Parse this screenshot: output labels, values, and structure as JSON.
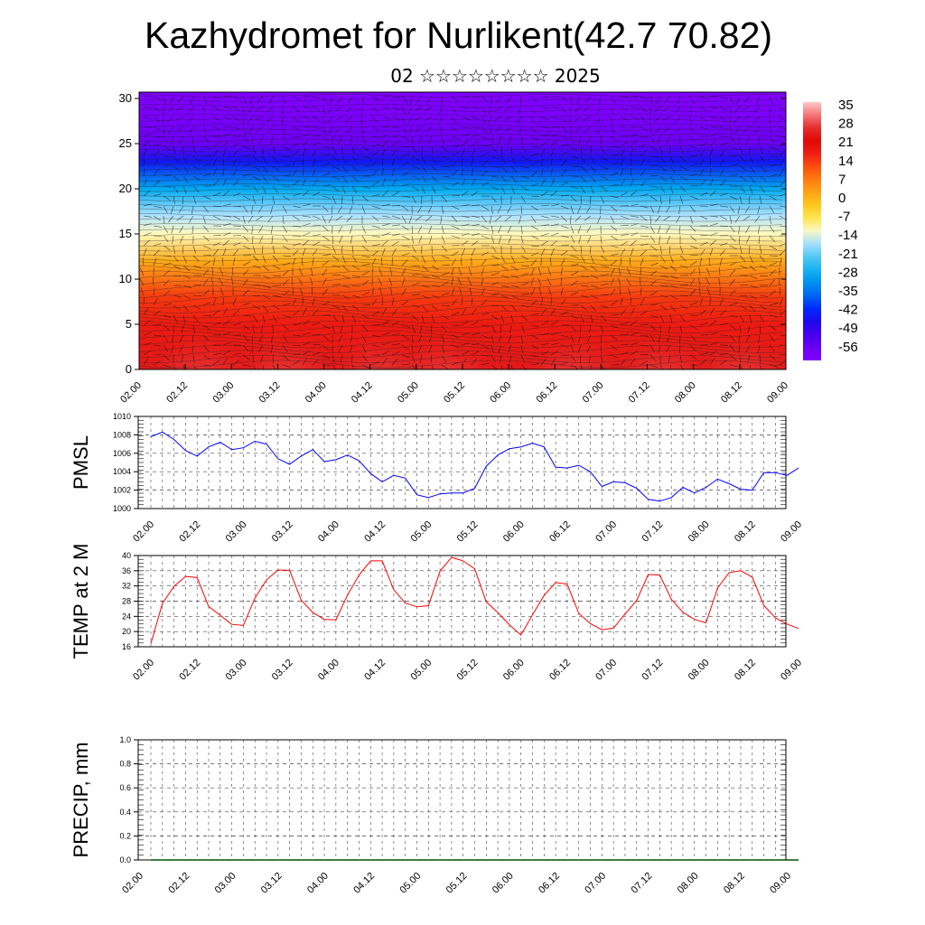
{
  "page": {
    "title": "Kazhydromet for Nurlikent(42.7 70.82)",
    "subtitle": "02 ☆☆☆☆☆☆☆☆ 2025"
  },
  "time_labels": [
    "02.00",
    "02.12",
    "03.00",
    "03.12",
    "04.00",
    "04.12",
    "05.00",
    "05.12",
    "06.00",
    "06.12",
    "07.00",
    "07.12",
    "08.00",
    "08.12",
    "09.00"
  ],
  "chart_data": [
    {
      "type": "heatmap",
      "description_label": "",
      "x": [
        "02.00",
        "02.12",
        "03.00",
        "03.12",
        "04.00",
        "04.12",
        "05.00",
        "05.12",
        "06.00",
        "06.12",
        "07.00",
        "07.12",
        "08.00",
        "08.12",
        "09.00"
      ],
      "y_ticks": [
        0,
        5,
        10,
        15,
        20,
        25,
        30
      ],
      "ylim": [
        0,
        30.7
      ],
      "colorbar_ticks": [
        "35",
        "28",
        "21",
        "14",
        "7",
        "0",
        "-7",
        "-14",
        "-21",
        "-28",
        "-35",
        "-42",
        "-49",
        "-56"
      ],
      "colorbar_range": [
        -63,
        42
      ],
      "temperature_profile": [
        {
          "height": 0,
          "temp": 30
        },
        {
          "height": 5,
          "temp": 22
        },
        {
          "height": 8,
          "temp": 18
        },
        {
          "height": 12,
          "temp": 4
        },
        {
          "height": 15,
          "temp": -10
        },
        {
          "height": 17,
          "temp": -15
        },
        {
          "height": 20,
          "temp": -28
        },
        {
          "height": 23,
          "temp": -45
        },
        {
          "height": 25,
          "temp": -58
        },
        {
          "height": 28,
          "temp": -62
        },
        {
          "height": 30.7,
          "temp": -63
        }
      ],
      "wind_barbs": true
    },
    {
      "type": "line",
      "ylabel": "PMSL",
      "ylim": [
        1000,
        1010
      ],
      "y_ticks": [
        1000,
        1002,
        1004,
        1006,
        1008,
        1010
      ],
      "color": "#0000ff",
      "x_step_hours": 3,
      "values": [
        1007.8,
        1008.3,
        1007.5,
        1006.3,
        1005.7,
        1006.7,
        1007.2,
        1006.4,
        1006.6,
        1007.3,
        1007.0,
        1005.4,
        1004.8,
        1005.7,
        1006.4,
        1005.1,
        1005.3,
        1005.8,
        1005.2,
        1003.8,
        1002.9,
        1003.6,
        1003.3,
        1001.5,
        1001.2,
        1001.6,
        1001.7,
        1001.7,
        1002.2,
        1004.6,
        1005.8,
        1006.5,
        1006.7,
        1007.1,
        1006.7,
        1004.5,
        1004.4,
        1004.7,
        1004.0,
        1002.4,
        1002.9,
        1002.8,
        1002.2,
        1001.0,
        1000.8,
        1001.2,
        1002.3,
        1001.7,
        1002.3,
        1003.2,
        1002.7,
        1002.1,
        1002.0,
        1003.9,
        1003.9,
        1003.6,
        1004.4
      ]
    },
    {
      "type": "line",
      "ylabel": "TEMP at 2 M",
      "ylim": [
        16,
        40
      ],
      "y_ticks": [
        16,
        20,
        24,
        28,
        32,
        36,
        40
      ],
      "color": "#ff0000",
      "x_step_hours": 3,
      "values": [
        16.8,
        27.4,
        31.9,
        34.5,
        34.2,
        26.6,
        24.3,
        21.9,
        21.6,
        28.8,
        33.6,
        36.2,
        36.1,
        28.3,
        25.0,
        23.2,
        23.1,
        29.6,
        34.9,
        38.6,
        38.6,
        31.0,
        27.5,
        26.5,
        26.8,
        35.9,
        39.5,
        38.6,
        36.5,
        27.8,
        25.0,
        21.8,
        19.1,
        24.4,
        29.5,
        32.9,
        32.5,
        24.8,
        22.1,
        20.5,
        20.9,
        24.6,
        28.2,
        35.0,
        34.9,
        28.5,
        25.1,
        23.2,
        22.3,
        31.5,
        35.5,
        36.0,
        34.3,
        26.9,
        23.6,
        22.0,
        20.8
      ]
    },
    {
      "type": "line",
      "ylabel": "PRECIP, mm",
      "ylim": [
        0,
        1
      ],
      "y_ticks": [
        "0.0",
        "0.2",
        "0.4",
        "0.6",
        "0.8",
        "1.0"
      ],
      "color": "#005000",
      "x_step_hours": 3,
      "values": [
        0,
        0,
        0,
        0,
        0,
        0,
        0,
        0,
        0,
        0,
        0,
        0,
        0,
        0,
        0,
        0,
        0,
        0,
        0,
        0,
        0,
        0,
        0,
        0,
        0,
        0,
        0,
        0,
        0,
        0,
        0,
        0,
        0,
        0,
        0,
        0,
        0,
        0,
        0,
        0,
        0,
        0,
        0,
        0,
        0,
        0,
        0,
        0,
        0,
        0,
        0,
        0,
        0,
        0,
        0,
        0,
        0
      ]
    }
  ]
}
